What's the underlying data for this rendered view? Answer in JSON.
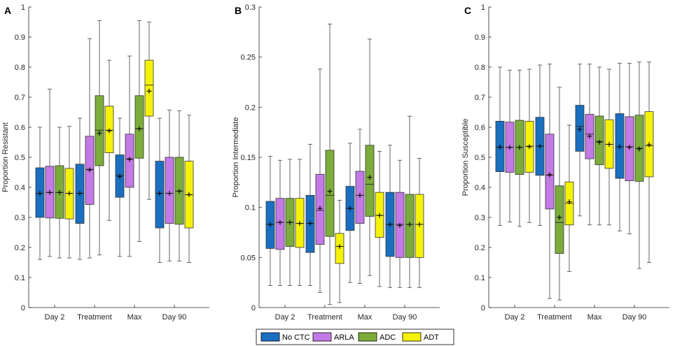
{
  "colors": {
    "No CTC": "#1a6fc1",
    "ARLA": "#c47ae6",
    "ADC": "#7cad3b",
    "ADT": "#f4f20a"
  },
  "legend": [
    "No CTC",
    "ARLA",
    "ADC",
    "ADT"
  ],
  "chart_data": [
    {
      "type": "boxplot",
      "panel": "A",
      "ylabel": "Proportion Resistant",
      "ylim": [
        0,
        1
      ],
      "yticks": [
        "0",
        "0.1",
        "0.2",
        "0.3",
        "0.4",
        "0.5",
        "0.6",
        "0.7",
        "0.8",
        "0.9",
        "1"
      ],
      "ytick_values": [
        0,
        0.1,
        0.2,
        0.3,
        0.4,
        0.5,
        0.6,
        0.7,
        0.8,
        0.9,
        1
      ],
      "categories": [
        "Day 2",
        "Treatment",
        "Max",
        "Day 90"
      ],
      "series": [
        {
          "name": "No CTC",
          "boxes": [
            {
              "min": 0.16,
              "q1": 0.3,
              "median": 0.38,
              "q3": 0.465,
              "max": 0.6,
              "mean": 0.38
            },
            {
              "min": 0.16,
              "q1": 0.28,
              "median": 0.38,
              "q3": 0.477,
              "max": 0.63,
              "mean": 0.38
            },
            {
              "min": 0.17,
              "q1": 0.367,
              "median": 0.44,
              "q3": 0.508,
              "max": 0.63,
              "mean": 0.436
            },
            {
              "min": 0.15,
              "q1": 0.265,
              "median": 0.38,
              "q3": 0.487,
              "max": 0.63,
              "mean": 0.38
            }
          ]
        },
        {
          "name": "ARLA",
          "boxes": [
            {
              "min": 0.17,
              "q1": 0.298,
              "median": 0.383,
              "q3": 0.47,
              "max": 0.727,
              "mean": 0.383
            },
            {
              "min": 0.165,
              "q1": 0.343,
              "median": 0.46,
              "q3": 0.57,
              "max": 0.895,
              "mean": 0.458
            },
            {
              "min": 0.17,
              "q1": 0.4,
              "median": 0.495,
              "q3": 0.577,
              "max": 0.837,
              "mean": 0.493
            },
            {
              "min": 0.155,
              "q1": 0.28,
              "median": 0.38,
              "q3": 0.5,
              "max": 0.657,
              "mean": 0.38
            }
          ]
        },
        {
          "name": "ADC",
          "boxes": [
            {
              "min": 0.165,
              "q1": 0.297,
              "median": 0.383,
              "q3": 0.472,
              "max": 0.6,
              "mean": 0.383
            },
            {
              "min": 0.175,
              "q1": 0.472,
              "median": 0.59,
              "q3": 0.705,
              "max": 0.955,
              "mean": 0.58
            },
            {
              "min": 0.22,
              "q1": 0.497,
              "median": 0.595,
              "q3": 0.705,
              "max": 0.955,
              "mean": 0.595
            },
            {
              "min": 0.155,
              "q1": 0.277,
              "median": 0.388,
              "q3": 0.5,
              "max": 0.655,
              "mean": 0.387
            }
          ]
        },
        {
          "name": "ADT",
          "boxes": [
            {
              "min": 0.165,
              "q1": 0.295,
              "median": 0.38,
              "q3": 0.463,
              "max": 0.603,
              "mean": 0.38
            },
            {
              "min": 0.29,
              "q1": 0.515,
              "median": 0.59,
              "q3": 0.67,
              "max": 0.823,
              "mean": 0.588
            },
            {
              "min": 0.36,
              "q1": 0.637,
              "median": 0.74,
              "q3": 0.823,
              "max": 0.95,
              "mean": 0.72
            },
            {
              "min": 0.15,
              "q1": 0.265,
              "median": 0.375,
              "q3": 0.487,
              "max": 0.64,
              "mean": 0.376
            }
          ]
        }
      ]
    },
    {
      "type": "boxplot",
      "panel": "B",
      "ylabel": "Proportion Intermediate",
      "ylim": [
        0,
        0.3
      ],
      "yticks": [
        "0",
        "0.05",
        "0.1",
        "0.15",
        "0.2",
        "0.25",
        "0.3"
      ],
      "ytick_values": [
        0,
        0.05,
        0.1,
        0.15,
        0.2,
        0.25,
        0.3
      ],
      "categories": [
        "Day 2",
        "Treatment",
        "Max",
        "Day 90"
      ],
      "series": [
        {
          "name": "No CTC",
          "boxes": [
            {
              "min": 0.022,
              "q1": 0.059,
              "median": 0.083,
              "q3": 0.106,
              "max": 0.151,
              "mean": 0.083
            },
            {
              "min": 0.022,
              "q1": 0.055,
              "median": 0.084,
              "q3": 0.112,
              "max": 0.163,
              "mean": 0.084
            },
            {
              "min": 0.025,
              "q1": 0.077,
              "median": 0.099,
              "q3": 0.121,
              "max": 0.164,
              "mean": 0.099
            },
            {
              "min": 0.02,
              "q1": 0.051,
              "median": 0.083,
              "q3": 0.115,
              "max": 0.162,
              "mean": 0.083
            }
          ]
        },
        {
          "name": "ARLA",
          "boxes": [
            {
              "min": 0.022,
              "q1": 0.058,
              "median": 0.085,
              "q3": 0.109,
              "max": 0.147,
              "mean": 0.085
            },
            {
              "min": 0.015,
              "q1": 0.063,
              "median": 0.097,
              "q3": 0.133,
              "max": 0.238,
              "mean": 0.099
            },
            {
              "min": 0.024,
              "q1": 0.084,
              "median": 0.112,
              "q3": 0.136,
              "max": 0.178,
              "mean": 0.112
            },
            {
              "min": 0.02,
              "q1": 0.05,
              "median": 0.083,
              "q3": 0.115,
              "max": 0.147,
              "mean": 0.082
            }
          ]
        },
        {
          "name": "ADC",
          "boxes": [
            {
              "min": 0.022,
              "q1": 0.061,
              "median": 0.085,
              "q3": 0.109,
              "max": 0.148,
              "mean": 0.085
            },
            {
              "min": 0.003,
              "q1": 0.071,
              "median": 0.112,
              "q3": 0.157,
              "max": 0.283,
              "mean": 0.116
            },
            {
              "min": 0.032,
              "q1": 0.091,
              "median": 0.123,
              "q3": 0.162,
              "max": 0.268,
              "mean": 0.13
            },
            {
              "min": 0.02,
              "q1": 0.05,
              "median": 0.083,
              "q3": 0.113,
              "max": 0.191,
              "mean": 0.083
            }
          ]
        },
        {
          "name": "ADT",
          "boxes": [
            {
              "min": 0.022,
              "q1": 0.06,
              "median": 0.084,
              "q3": 0.109,
              "max": 0.148,
              "mean": 0.084
            },
            {
              "min": 0.005,
              "q1": 0.044,
              "median": 0.061,
              "q3": 0.074,
              "max": 0.107,
              "mean": 0.061
            },
            {
              "min": 0.021,
              "q1": 0.07,
              "median": 0.092,
              "q3": 0.115,
              "max": 0.156,
              "mean": 0.092
            },
            {
              "min": 0.02,
              "q1": 0.05,
              "median": 0.083,
              "q3": 0.113,
              "max": 0.149,
              "mean": 0.083
            }
          ]
        }
      ]
    },
    {
      "type": "boxplot",
      "panel": "C",
      "ylabel": "Proportion Susceptible",
      "ylim": [
        0,
        1
      ],
      "yticks": [
        "0",
        "0.1",
        "0.2",
        "0.3",
        "0.4",
        "0.5",
        "0.6",
        "0.7",
        "0.8",
        "0.9",
        "1"
      ],
      "ytick_values": [
        0,
        0.1,
        0.2,
        0.3,
        0.4,
        0.5,
        0.6,
        0.7,
        0.8,
        0.9,
        1
      ],
      "categories": [
        "Day 2",
        "Treatment",
        "Max",
        "Day 90"
      ],
      "series": [
        {
          "name": "No CTC",
          "boxes": [
            {
              "min": 0.273,
              "q1": 0.452,
              "median": 0.533,
              "q3": 0.62,
              "max": 0.8,
              "mean": 0.534
            },
            {
              "min": 0.273,
              "q1": 0.44,
              "median": 0.537,
              "q3": 0.633,
              "max": 0.807,
              "mean": 0.537
            },
            {
              "min": 0.305,
              "q1": 0.52,
              "median": 0.603,
              "q3": 0.673,
              "max": 0.81,
              "mean": 0.593
            },
            {
              "min": 0.255,
              "q1": 0.43,
              "median": 0.535,
              "q3": 0.645,
              "max": 0.813,
              "mean": 0.535
            }
          ]
        },
        {
          "name": "ARLA",
          "boxes": [
            {
              "min": 0.285,
              "q1": 0.45,
              "median": 0.533,
              "q3": 0.617,
              "max": 0.79,
              "mean": 0.533
            },
            {
              "min": 0.03,
              "q1": 0.328,
              "median": 0.44,
              "q3": 0.577,
              "max": 0.81,
              "mean": 0.442
            },
            {
              "min": 0.275,
              "q1": 0.495,
              "median": 0.577,
              "q3": 0.643,
              "max": 0.81,
              "mean": 0.57
            },
            {
              "min": 0.245,
              "q1": 0.422,
              "median": 0.535,
              "q3": 0.635,
              "max": 0.813,
              "mean": 0.533
            }
          ]
        },
        {
          "name": "ADC",
          "boxes": [
            {
              "min": 0.27,
              "q1": 0.443,
              "median": 0.533,
              "q3": 0.623,
              "max": 0.79,
              "mean": 0.533
            },
            {
              "min": 0.025,
              "q1": 0.18,
              "median": 0.283,
              "q3": 0.405,
              "max": 0.733,
              "mean": 0.3
            },
            {
              "min": 0.275,
              "q1": 0.475,
              "median": 0.553,
              "q3": 0.637,
              "max": 0.8,
              "mean": 0.55
            },
            {
              "min": 0.13,
              "q1": 0.42,
              "median": 0.53,
              "q3": 0.64,
              "max": 0.817,
              "mean": 0.528
            }
          ]
        },
        {
          "name": "ADT",
          "boxes": [
            {
              "min": 0.283,
              "q1": 0.45,
              "median": 0.537,
              "q3": 0.62,
              "max": 0.793,
              "mean": 0.535
            },
            {
              "min": 0.12,
              "q1": 0.275,
              "median": 0.347,
              "q3": 0.418,
              "max": 0.607,
              "mean": 0.352
            },
            {
              "min": 0.275,
              "q1": 0.463,
              "median": 0.543,
              "q3": 0.625,
              "max": 0.793,
              "mean": 0.543
            },
            {
              "min": 0.15,
              "q1": 0.435,
              "median": 0.538,
              "q3": 0.652,
              "max": 0.817,
              "mean": 0.542
            }
          ]
        }
      ]
    }
  ]
}
